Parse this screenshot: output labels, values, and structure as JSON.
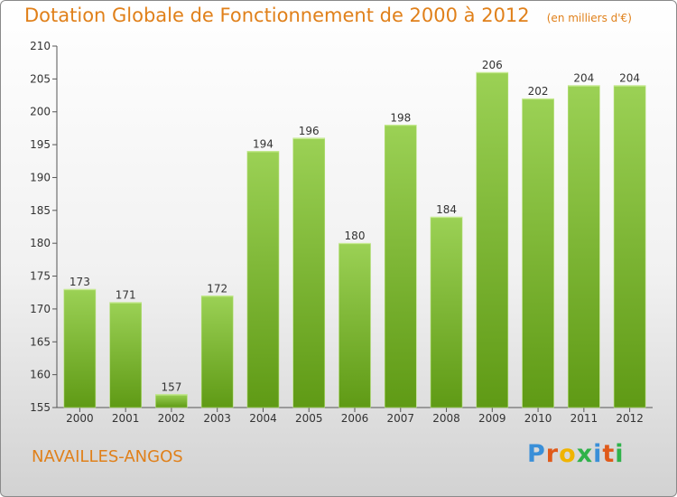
{
  "header": {
    "title": "Dotation Globale de Fonctionnement de 2000 à 2012",
    "unit": "(en milliers d'€)"
  },
  "footer": {
    "commune": "NAVAILLES-ANGOS",
    "brand": "Proxiti",
    "brand_colors": [
      "#3a8fd8",
      "#e05a1a",
      "#f0b400",
      "#2fb24a",
      "#3a8fd8",
      "#e05a1a",
      "#2fb24a"
    ]
  },
  "colors": {
    "accent": "#e0801a",
    "bar_top": "#9bd155",
    "bar_bottom": "#5f9a15",
    "axis": "#555555",
    "grid_tick": "#555555"
  },
  "chart_data": {
    "type": "bar",
    "title": "Dotation Globale de Fonctionnement de 2000 à 2012",
    "xlabel": "",
    "ylabel": "",
    "categories": [
      "2000",
      "2001",
      "2002",
      "2003",
      "2004",
      "2005",
      "2006",
      "2007",
      "2008",
      "2009",
      "2010",
      "2011",
      "2012"
    ],
    "values": [
      173,
      171,
      157,
      172,
      194,
      196,
      180,
      198,
      184,
      206,
      202,
      204,
      204
    ],
    "ylim": [
      155,
      210
    ],
    "yticks": [
      155,
      160,
      165,
      170,
      175,
      180,
      185,
      190,
      195,
      200,
      205,
      210
    ],
    "grid": false,
    "data_labels": true
  }
}
